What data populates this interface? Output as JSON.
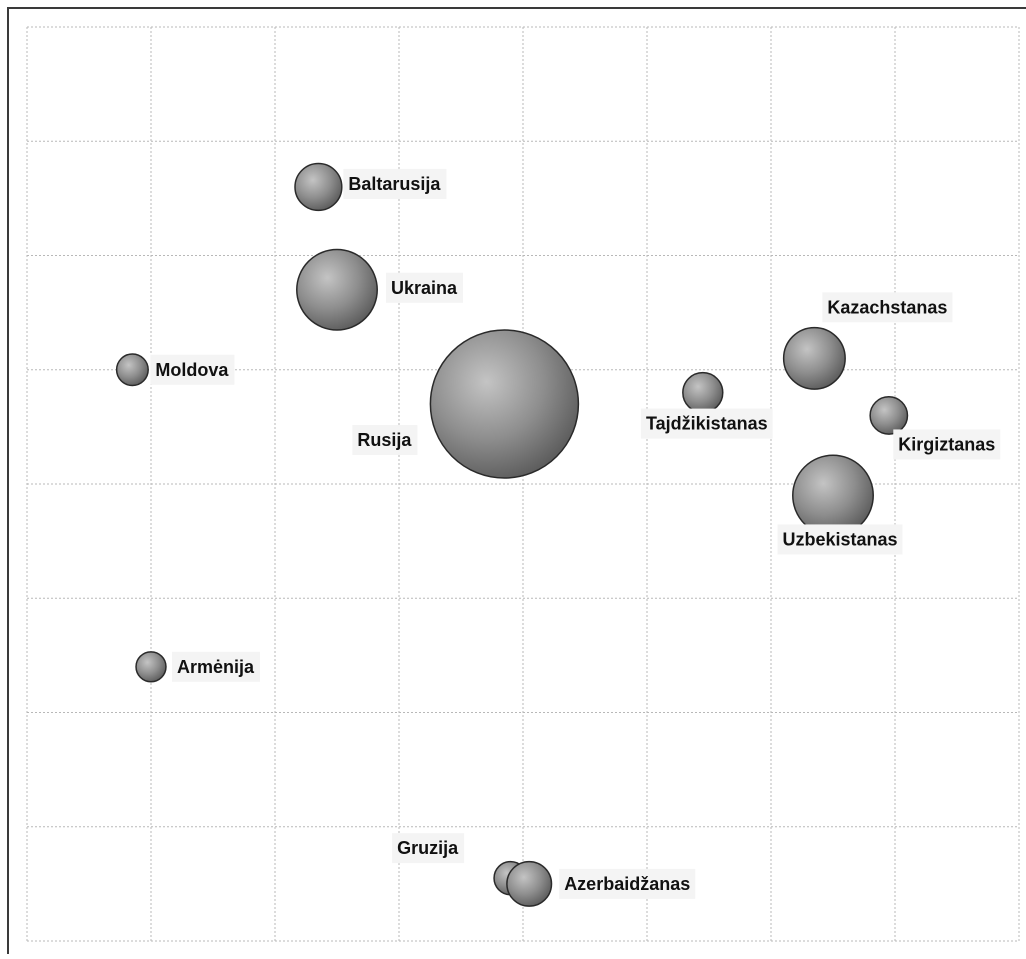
{
  "chart_data": {
    "type": "scatter",
    "variant": "bubble",
    "title": "",
    "xlabel": "",
    "ylabel": "",
    "grid": true,
    "grid_style": "dotted",
    "legend": "none",
    "xlim": [
      0,
      8
    ],
    "ylim": [
      0,
      8
    ],
    "bubble_color": "#8a8a8a",
    "points": [
      {
        "label": "Baltarusija",
        "x": 2.35,
        "y": 6.6,
        "size": 2.2
      },
      {
        "label": "Ukraina",
        "x": 2.5,
        "y": 5.7,
        "size": 6.5
      },
      {
        "label": "Moldova",
        "x": 0.85,
        "y": 5.0,
        "size": 1.0
      },
      {
        "label": "Rusija",
        "x": 3.85,
        "y": 4.7,
        "size": 22.0
      },
      {
        "label": "Tajdžikistanas",
        "x": 5.45,
        "y": 4.8,
        "size": 1.6
      },
      {
        "label": "Kazachstanas",
        "x": 6.35,
        "y": 5.1,
        "size": 3.8
      },
      {
        "label": "Kirgiztanas",
        "x": 6.95,
        "y": 4.6,
        "size": 1.4
      },
      {
        "label": "Uzbekistanas",
        "x": 6.5,
        "y": 3.9,
        "size": 6.5
      },
      {
        "label": "Armėnija",
        "x": 1.0,
        "y": 2.4,
        "size": 0.9
      },
      {
        "label": "Gruzija",
        "x": 3.9,
        "y": 0.55,
        "size": 1.1
      },
      {
        "label": "Azerbaidžanas",
        "x": 4.05,
        "y": 0.5,
        "size": 2.0
      }
    ]
  }
}
